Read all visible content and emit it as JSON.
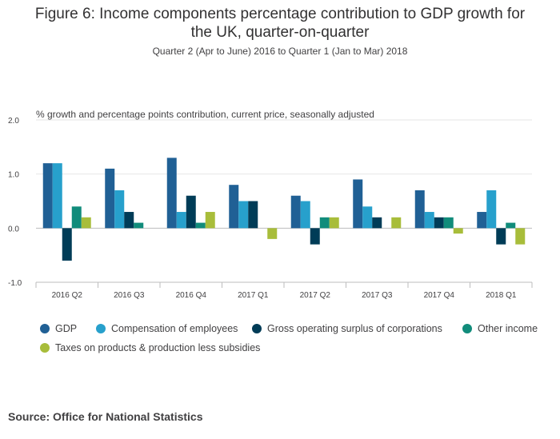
{
  "header": {
    "title_line1": "Figure 6: Income components percentage contribution to GDP growth for",
    "title_line2": "the UK, quarter-on-quarter",
    "subtitle": "Quarter 2 (Apr to June) 2016 to Quarter 1 (Jan to Mar) 2018"
  },
  "footer": {
    "source": "Source: Office for National Statistics"
  },
  "chart_data": {
    "type": "bar",
    "title": "Figure 6: Income components percentage contribution to GDP growth for the UK, quarter-on-quarter",
    "subtitle": "Quarter 2 (Apr to June) 2016 to Quarter 1 (Jan to Mar) 2018",
    "ylabel": "% growth and percentage points contribution, current price, seasonally adjusted",
    "xlabel": "",
    "ylim": [
      -1.0,
      2.0
    ],
    "yticks": [
      "2.0",
      "1.0",
      "0.0",
      "-1.0"
    ],
    "ytick_values": [
      2.0,
      1.0,
      0.0,
      -1.0
    ],
    "grid": true,
    "legend_position": "bottom",
    "categories": [
      "2016 Q2",
      "2016 Q3",
      "2016 Q4",
      "2017 Q1",
      "2017 Q2",
      "2017 Q3",
      "2017 Q4",
      "2018 Q1"
    ],
    "series": [
      {
        "name": "GDP",
        "color": "#206095",
        "values": [
          1.2,
          1.1,
          1.3,
          0.8,
          0.6,
          0.9,
          0.7,
          0.3
        ]
      },
      {
        "name": "Compensation of employees",
        "color": "#27A0CC",
        "values": [
          1.2,
          0.7,
          0.3,
          0.5,
          0.5,
          0.4,
          0.3,
          0.7
        ]
      },
      {
        "name": "Gross operating surplus of corporations",
        "color": "#003C57",
        "values": [
          -0.6,
          0.3,
          0.6,
          0.5,
          -0.3,
          0.2,
          0.2,
          -0.3
        ]
      },
      {
        "name": "Other income",
        "color": "#118C7B",
        "values": [
          0.4,
          0.1,
          0.1,
          0.0,
          0.2,
          0.0,
          0.2,
          0.1
        ]
      },
      {
        "name": "Taxes on products & production less subsidies",
        "color": "#A8BD3A",
        "values": [
          0.2,
          0.0,
          0.3,
          -0.2,
          0.2,
          0.2,
          -0.1,
          -0.3
        ]
      }
    ]
  }
}
